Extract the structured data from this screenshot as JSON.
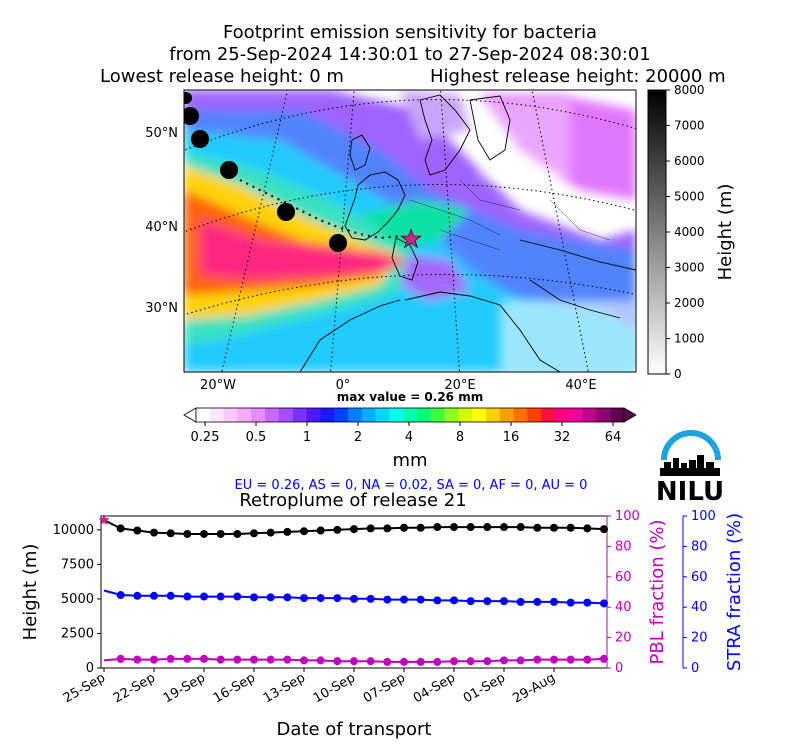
{
  "title": {
    "line1": "Footprint emission sensitivity for bacteria",
    "line2": "from 25-Sep-2024 14:30:01 to 27-Sep-2024 08:30:01",
    "line3a": "Lowest release height: 0 m",
    "line3b": "Highest release height: 20000 m"
  },
  "map": {
    "lat_labels": [
      "50°N",
      "40°N",
      "30°N"
    ],
    "lon_labels": [
      "20°W",
      "0°",
      "20°E",
      "40°E"
    ],
    "max_value_text": "max value = 0.26 mm"
  },
  "height_colorbar": {
    "label": "Height (m)",
    "ticks": [
      "8000",
      "7000",
      "6000",
      "5000",
      "4000",
      "3000",
      "2000",
      "1000",
      "0"
    ]
  },
  "mm_colorbar": {
    "label": "mm",
    "ticks": [
      "0.25",
      "0.5",
      "1",
      "2",
      "4",
      "8",
      "16",
      "32",
      "64"
    ]
  },
  "fractions_text": "EU = 0.26,  AS = 0,  NA = 0.02,  SA = 0,  AF = 0,  AU = 0",
  "logo_text": "NILU",
  "colors": {
    "height_line": "#000000",
    "pbl_line": "#bf00bf",
    "stra_line": "#0000ff",
    "fractions_text": "#0000ff",
    "logo_arc": "#1aa3e0"
  },
  "chart_data": [
    {
      "type": "line",
      "title": "Retroplume of release 21",
      "xlabel": "Date of transport",
      "x_tick_labels": [
        "25-Sep",
        "22-Sep",
        "19-Sep",
        "16-Sep",
        "13-Sep",
        "10-Sep",
        "07-Sep",
        "04-Sep",
        "01-Sep",
        "29-Aug"
      ],
      "x_days_back": [
        0,
        1,
        2,
        3,
        4,
        5,
        6,
        7,
        8,
        9,
        10,
        11,
        12,
        13,
        14,
        15,
        16,
        17,
        18,
        19,
        20,
        21,
        22,
        23,
        24,
        25,
        26,
        27,
        28,
        29,
        30
      ],
      "left_axis": {
        "label": "Height (m)",
        "ylim": [
          0,
          11000
        ],
        "ticks": [
          "0",
          "2500",
          "5000",
          "7500",
          "10000"
        ]
      },
      "right_axes": [
        {
          "label": "PBL fraction (%)",
          "ylim": [
            0,
            100
          ],
          "ticks": [
            "0",
            "20",
            "40",
            "60",
            "80",
            "100"
          ],
          "color": "#bf00bf"
        },
        {
          "label": "STRA fraction (%)",
          "ylim": [
            0,
            100
          ],
          "ticks": [
            "0",
            "20",
            "40",
            "60",
            "80",
            "100"
          ],
          "color": "#0000ff"
        }
      ],
      "series": [
        {
          "name": "Height",
          "axis": "left",
          "values": [
            10700,
            10100,
            9950,
            9800,
            9750,
            9700,
            9700,
            9700,
            9700,
            9750,
            9800,
            9850,
            9900,
            9950,
            10000,
            10050,
            10100,
            10100,
            10150,
            10150,
            10200,
            10200,
            10200,
            10200,
            10200,
            10200,
            10150,
            10150,
            10150,
            10100,
            10050
          ]
        },
        {
          "name": "PBL fraction",
          "axis": "pbl",
          "values": [
            5,
            6,
            5.5,
            5.5,
            6,
            6,
            6,
            5.5,
            5.5,
            5.5,
            5.5,
            5.5,
            5,
            5,
            4.5,
            4.5,
            4.5,
            4,
            4,
            4,
            4,
            4.5,
            4.5,
            4.5,
            5,
            5,
            5.5,
            5.5,
            5.5,
            5.5,
            6
          ]
        },
        {
          "name": "STRA fraction",
          "axis": "stra",
          "values": [
            51,
            48,
            47.5,
            47.5,
            47.5,
            47,
            47,
            47,
            47,
            46.5,
            46.5,
            46.5,
            46,
            46,
            46,
            45.5,
            45.5,
            45,
            45,
            45,
            44.5,
            44.5,
            44,
            44,
            44,
            43.5,
            43.5,
            43.5,
            43,
            43,
            42.5
          ]
        }
      ]
    }
  ]
}
